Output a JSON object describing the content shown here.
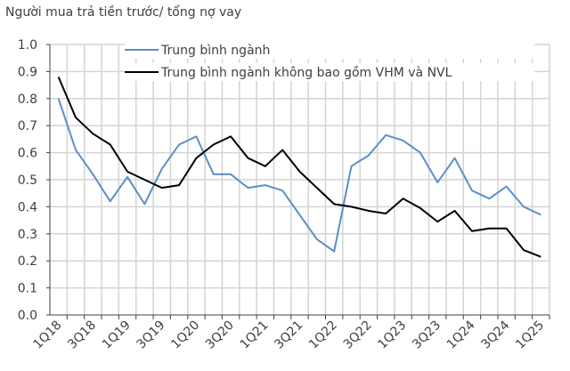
{
  "chart_data": {
    "type": "line",
    "title": "Người mua trả tiền trước/ tổng nợ vay",
    "xlabel": "",
    "ylabel": "",
    "ylim": [
      0,
      1.0
    ],
    "yticks": [
      "0.0",
      "0.1",
      "0.2",
      "0.3",
      "0.4",
      "0.5",
      "0.6",
      "0.7",
      "0.8",
      "0.9",
      "1.0"
    ],
    "grid": true,
    "legend_position": "top-center",
    "categories": [
      "1Q18",
      "2Q18",
      "3Q18",
      "4Q18",
      "1Q19",
      "2Q19",
      "3Q19",
      "4Q19",
      "1Q20",
      "2Q20",
      "3Q20",
      "4Q20",
      "1Q21",
      "2Q21",
      "3Q21",
      "4Q21",
      "1Q22",
      "2Q22",
      "3Q22",
      "4Q22",
      "1Q23",
      "2Q23",
      "3Q23",
      "4Q23",
      "1Q24",
      "2Q24",
      "3Q24",
      "4Q24",
      "1Q25"
    ],
    "tick_labels": [
      "1Q18",
      "3Q18",
      "1Q19",
      "3Q19",
      "1Q20",
      "3Q20",
      "1Q21",
      "3Q21",
      "1Q22",
      "3Q22",
      "1Q23",
      "3Q23",
      "1Q24",
      "3Q24",
      "1Q25"
    ],
    "series": [
      {
        "name": "Trung bình ngành",
        "color": "#5b8fc7",
        "values": [
          0.8,
          0.61,
          0.52,
          0.42,
          0.51,
          0.41,
          0.54,
          0.63,
          0.66,
          0.52,
          0.52,
          0.47,
          0.48,
          0.46,
          0.37,
          0.28,
          0.235,
          0.55,
          0.59,
          0.665,
          0.645,
          0.6,
          0.49,
          0.58,
          0.46,
          0.43,
          0.475,
          0.4,
          0.37
        ]
      },
      {
        "name": "Trung bình ngành không bao gồm VHM và NVL",
        "color": "#000000",
        "values": [
          0.88,
          0.73,
          0.67,
          0.63,
          0.53,
          0.5,
          0.47,
          0.48,
          0.58,
          0.63,
          0.66,
          0.58,
          0.55,
          0.61,
          0.53,
          0.47,
          0.41,
          0.4,
          0.385,
          0.375,
          0.43,
          0.395,
          0.345,
          0.385,
          0.31,
          0.32,
          0.32,
          0.24,
          0.215
        ]
      }
    ]
  }
}
